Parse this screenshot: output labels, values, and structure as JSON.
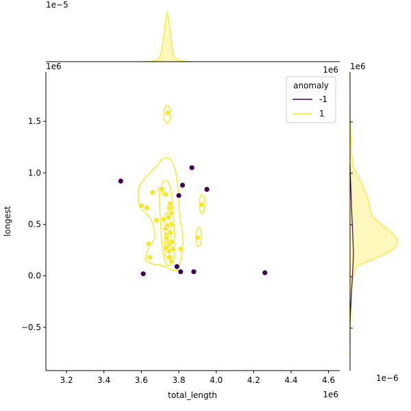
{
  "chart_data": {
    "type": "scatter",
    "title": "",
    "xlabel": "total_length",
    "ylabel": "longest",
    "x_offset_label": "1e6",
    "y_offset_label": "1e6",
    "xlim": [
      3.09,
      4.66
    ],
    "ylim": [
      -0.92,
      1.98
    ],
    "x_ticks": [
      3.2,
      3.4,
      3.6,
      3.8,
      4.0,
      4.2,
      4.4,
      4.6
    ],
    "y_ticks": [
      -0.5,
      0.0,
      0.5,
      1.0,
      1.5
    ],
    "x_tick_labels": [
      "3.2",
      "3.4",
      "3.6",
      "3.8",
      "4.0",
      "4.2",
      "4.4",
      "4.6"
    ],
    "y_tick_labels": [
      "−0.5",
      "0.0",
      "0.5",
      "1.0",
      "1.5"
    ],
    "legend": {
      "title": "anomaly",
      "placement": "top-right",
      "entries": [
        {
          "label": "-1",
          "color": "#440154"
        },
        {
          "label": "1",
          "color": "#fde725"
        }
      ]
    },
    "series": [
      {
        "name": "-1",
        "color": "#440154",
        "points": [
          [
            3.49,
            0.92
          ],
          [
            3.61,
            0.02
          ],
          [
            3.8,
            0.78
          ],
          [
            3.82,
            0.88
          ],
          [
            3.87,
            1.05
          ],
          [
            3.95,
            0.84
          ],
          [
            3.79,
            0.09
          ],
          [
            3.81,
            0.04
          ],
          [
            3.88,
            0.04
          ],
          [
            4.26,
            0.03
          ]
        ]
      },
      {
        "name": "1",
        "color": "#fde725",
        "points": [
          [
            3.6,
            0.68
          ],
          [
            3.63,
            0.66
          ],
          [
            3.66,
            0.81
          ],
          [
            3.68,
            0.54
          ],
          [
            3.64,
            0.31
          ],
          [
            3.645,
            0.18
          ],
          [
            3.7,
            0.84
          ],
          [
            3.71,
            0.84
          ],
          [
            3.72,
            0.8
          ],
          [
            3.73,
            0.79
          ],
          [
            3.74,
            1.58
          ],
          [
            3.72,
            0.55
          ],
          [
            3.73,
            0.46
          ],
          [
            3.735,
            0.4
          ],
          [
            3.74,
            0.35
          ],
          [
            3.745,
            0.3
          ],
          [
            3.75,
            0.24
          ],
          [
            3.755,
            0.42
          ],
          [
            3.76,
            0.5
          ],
          [
            3.75,
            0.66
          ],
          [
            3.755,
            0.7
          ],
          [
            3.76,
            0.61
          ],
          [
            3.745,
            0.57
          ],
          [
            3.74,
            0.49
          ],
          [
            3.735,
            0.37
          ],
          [
            3.75,
            0.18
          ],
          [
            3.76,
            0.14
          ],
          [
            3.73,
            0.27
          ],
          [
            3.765,
            0.33
          ],
          [
            3.77,
            0.26
          ],
          [
            3.81,
            0.26
          ],
          [
            3.9,
            0.37
          ],
          [
            3.92,
            0.69
          ]
        ]
      }
    ],
    "top_marginal": {
      "offset_label": "1e−5"
    },
    "right_marginal": {
      "offset_label": "1e−6"
    }
  }
}
